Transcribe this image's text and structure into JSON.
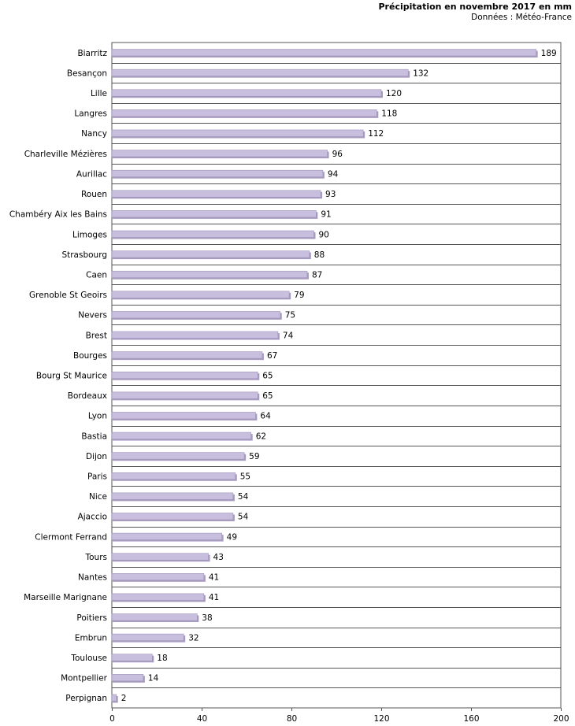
{
  "chart_data": {
    "type": "bar",
    "orientation": "horizontal",
    "title": "Précipitation en novembre 2017 en mm",
    "subtitle": "Données : Météo-France",
    "categories": [
      "Biarritz",
      "Besançon",
      "Lille",
      "Langres",
      "Nancy",
      "Charleville Mézières",
      "Aurillac",
      "Rouen",
      "Chambéry Aix les Bains",
      "Limoges",
      "Strasbourg",
      "Caen",
      "Grenoble St Geoirs",
      "Nevers",
      "Brest",
      "Bourges",
      "Bourg St Maurice",
      "Bordeaux",
      "Lyon",
      "Bastia",
      "Dijon",
      "Paris",
      "Nice",
      "Ajaccio",
      "Clermont Ferrand",
      "Tours",
      "Nantes",
      "Marseille Marignane",
      "Poitiers",
      "Embrun",
      "Toulouse",
      "Montpellier",
      "Perpignan"
    ],
    "values": [
      189,
      132,
      120,
      118,
      112,
      96,
      94,
      93,
      91,
      90,
      88,
      87,
      79,
      75,
      74,
      67,
      65,
      65,
      64,
      62,
      59,
      55,
      54,
      54,
      49,
      43,
      41,
      41,
      38,
      32,
      18,
      14,
      2
    ],
    "xlim": [
      0,
      200
    ],
    "xticks": [
      0,
      40,
      80,
      120,
      160,
      200
    ],
    "grid": true,
    "bar_color": "#c8bedd",
    "bar_shadow_color": "#a89cc0",
    "grid_color": "#555555"
  }
}
